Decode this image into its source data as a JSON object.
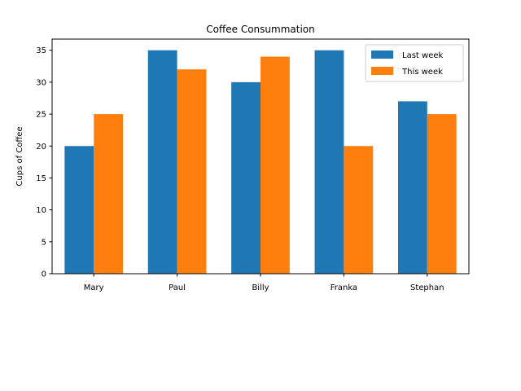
{
  "chart_data": {
    "type": "bar",
    "title": "Coffee Consummation",
    "xlabel": "",
    "ylabel": "Cups of Coffee",
    "categories": [
      "Mary",
      "Paul",
      "Billy",
      "Franka",
      "Stephan"
    ],
    "series": [
      {
        "name": "Last week",
        "values": [
          20,
          35,
          30,
          35,
          27
        ],
        "color": "#1f77b4"
      },
      {
        "name": "This week",
        "values": [
          25,
          32,
          34,
          20,
          25
        ],
        "color": "#ff7f0e"
      }
    ],
    "ylim": [
      0,
      36.75
    ],
    "yticks": [
      0,
      5,
      10,
      15,
      20,
      25,
      30,
      35
    ],
    "grid": false,
    "legend_position": "top-right"
  }
}
